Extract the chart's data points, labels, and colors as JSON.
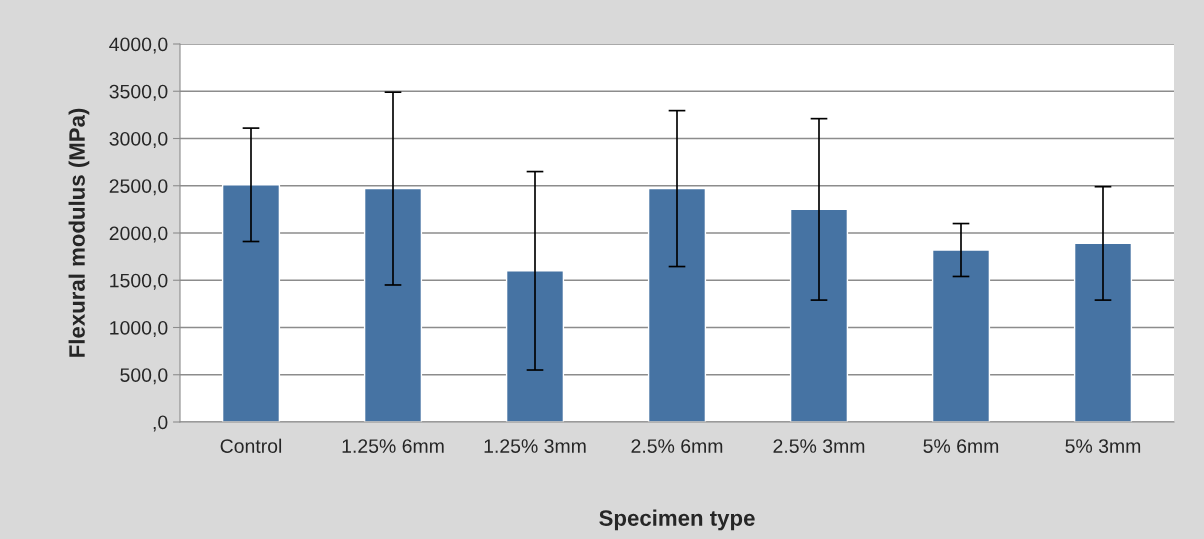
{
  "chart_data": {
    "type": "bar",
    "xlabel": "Specimen type",
    "ylabel": "Flexural modulus (MPa)",
    "categories": [
      "Control",
      "1.25% 6mm",
      "1.25% 3mm",
      "2.5% 6mm",
      "2.5% 3mm",
      "5% 6mm",
      "5% 3mm"
    ],
    "values": [
      2510,
      2470,
      1600,
      2470,
      2250,
      1820,
      1890
    ],
    "errors": [
      600,
      1020,
      1050,
      825,
      960,
      280,
      600
    ],
    "color": "#4673a3",
    "ylim": [
      0,
      4000
    ],
    "yticks": [
      {
        "value": 0,
        "label": ",0"
      },
      {
        "value": 500,
        "label": "500,0"
      },
      {
        "value": 1000,
        "label": "1000,0"
      },
      {
        "value": 1500,
        "label": "1500,0"
      },
      {
        "value": 2000,
        "label": "2000,0"
      },
      {
        "value": 2500,
        "label": "2500,0"
      },
      {
        "value": 3000,
        "label": "3000,0"
      },
      {
        "value": 3500,
        "label": "3500,0"
      },
      {
        "value": 4000,
        "label": "4000,0"
      }
    ],
    "grid": "y",
    "legend": false
  }
}
